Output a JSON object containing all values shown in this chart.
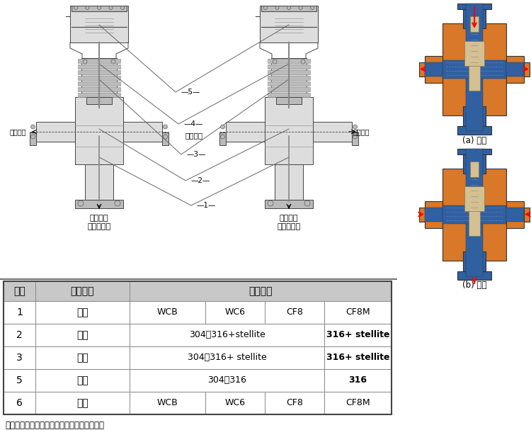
{
  "bg_color": "#ffffff",
  "table_header_bg": "#c8c8c8",
  "table_row_bg": "#ffffff",
  "table_border_color": "#888888",
  "rows": [
    {
      "num": "1",
      "name": "阀体",
      "c1": "WCB",
      "c2": "WC6",
      "c3": "CF8",
      "c4": "CF8M",
      "merge": false
    },
    {
      "num": "2",
      "name": "阀座",
      "c1": "304、316+stellite",
      "c4": "316+ stellite",
      "merge": true
    },
    {
      "num": "3",
      "name": "阀芯",
      "c1": "304、316+ stellite",
      "c4": "316+ stellite",
      "merge": true
    },
    {
      "num": "5",
      "name": "阀杆",
      "c1": "304、316",
      "c4": "316",
      "merge": true
    },
    {
      "num": "6",
      "name": "阀盖",
      "c1": "WCB",
      "c2": "WC6",
      "c3": "CF8",
      "c4": "CF8M",
      "merge": false
    }
  ],
  "footer": "以上为常用材料，具体牌号以订货合同为准。",
  "hdr_seq": "序号",
  "hdr_name": "零件名称",
  "hdr_mat": "常用材料",
  "lbl_horiz": "水平通道",
  "lbl_vert_l1": "垂直通道",
  "lbl_vert_l2": "三通分流型",
  "lbl_vert_r1": "垂直通道",
  "lbl_vert_r2": "三通合流型",
  "lbl_a": "(a) 分流",
  "lbl_b": "(b) 合流",
  "part_nums": [
    "1",
    "2",
    "3",
    "4",
    "5"
  ],
  "orange": "#D87828",
  "blue": "#3060A0",
  "light_blue": "#A8C8E0",
  "beige": "#D4C090",
  "gray_dark": "#888888",
  "gray_mid": "#BBBBBB",
  "gray_light": "#DDDDDD"
}
